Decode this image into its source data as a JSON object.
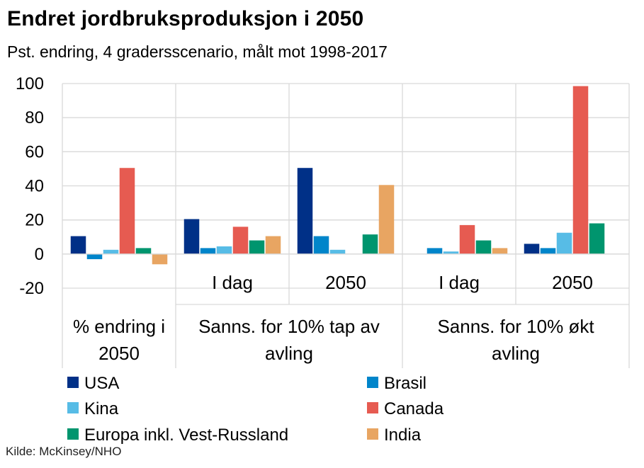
{
  "title": "Endret jordbruksproduksjon i 2050",
  "subtitle": "Pst. endring, 4 gradersscenario, målt mot 1998-2017",
  "source": "Kilde: McKinsey/NHO",
  "chart_data": {
    "type": "bar",
    "ylim": [
      -20,
      100
    ],
    "yticks": [
      -20,
      0,
      20,
      40,
      60,
      80,
      100
    ],
    "grid": true,
    "legend_position": "bottom",
    "groups": [
      {
        "label": "% endring i 2050",
        "span": [
          0,
          1
        ]
      },
      {
        "label": "Sanns. for 10% tap av avling",
        "span": [
          1,
          3
        ]
      },
      {
        "label": "Sanns. for 10% økt avling",
        "span": [
          3,
          5
        ]
      }
    ],
    "categories": [
      "",
      "I dag",
      "2050",
      "I dag",
      "2050"
    ],
    "series": [
      {
        "name": "USA",
        "color": "#003087",
        "values": [
          10.5,
          20.5,
          50.5,
          0,
          6
        ]
      },
      {
        "name": "Brasil",
        "color": "#0085CA",
        "values": [
          -3,
          3.5,
          10.5,
          3.5,
          3.5
        ]
      },
      {
        "name": "Kina",
        "color": "#57BCE6",
        "values": [
          2.5,
          4.5,
          2.5,
          1.5,
          12.5
        ]
      },
      {
        "name": "Canada",
        "color": "#E65B51",
        "values": [
          50.5,
          16,
          0,
          17,
          98.5
        ]
      },
      {
        "name": "Europa inkl. Vest-Russland",
        "color": "#00956E",
        "values": [
          3.5,
          8,
          11.5,
          8,
          18
        ]
      },
      {
        "name": "India",
        "color": "#E8A562",
        "values": [
          -6,
          10.5,
          40.5,
          3.5,
          0
        ]
      }
    ]
  }
}
